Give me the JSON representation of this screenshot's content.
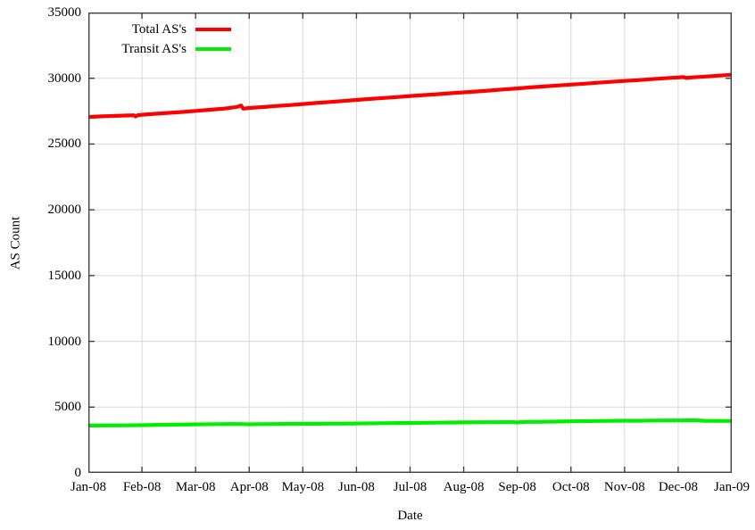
{
  "chart_data": {
    "type": "line",
    "title": "",
    "xlabel": "Date",
    "ylabel": "AS Count",
    "grid": true,
    "legend_position": "top-left-inside",
    "ylim": [
      0,
      35000
    ],
    "xlim_months": [
      0,
      12
    ],
    "x_tick_labels": [
      "Jan-08",
      "Feb-08",
      "Mar-08",
      "Apr-08",
      "May-08",
      "Jun-08",
      "Jul-08",
      "Aug-08",
      "Sep-08",
      "Oct-08",
      "Nov-08",
      "Dec-08",
      "Jan-09"
    ],
    "y_tick_labels": [
      "0",
      "5000",
      "10000",
      "15000",
      "20000",
      "25000",
      "30000",
      "35000"
    ],
    "y_tick_values": [
      0,
      5000,
      10000,
      15000,
      20000,
      25000,
      30000,
      35000
    ],
    "colors": {
      "border": "#404040",
      "grid": "#d9d9d9",
      "total": "#ff0000",
      "transit": "#00ee00"
    },
    "series": [
      {
        "name": "Total AS's",
        "color": "#ff0000",
        "x": [
          0,
          0.25,
          0.5,
          0.75,
          0.85,
          0.88,
          0.92,
          1.0,
          1.25,
          1.5,
          1.75,
          2.0,
          2.25,
          2.5,
          2.75,
          2.85,
          2.89,
          3.0,
          3.25,
          3.5,
          3.75,
          4.0,
          4.25,
          4.5,
          4.75,
          5.0,
          5.25,
          5.5,
          5.75,
          6.0,
          6.25,
          6.5,
          6.75,
          7.0,
          7.25,
          7.5,
          7.75,
          8.0,
          8.25,
          8.5,
          8.75,
          9.0,
          9.25,
          9.5,
          9.75,
          10.0,
          10.25,
          10.5,
          10.75,
          11.0,
          11.1,
          11.15,
          11.25,
          11.5,
          11.75,
          12.0
        ],
        "values": [
          27060,
          27105,
          27140,
          27170,
          27185,
          27100,
          27190,
          27230,
          27300,
          27370,
          27440,
          27520,
          27600,
          27680,
          27800,
          27930,
          27690,
          27740,
          27810,
          27890,
          27960,
          28040,
          28120,
          28200,
          28270,
          28350,
          28430,
          28500,
          28570,
          28650,
          28720,
          28790,
          28860,
          28930,
          29000,
          29070,
          29150,
          29230,
          29310,
          29380,
          29450,
          29520,
          29590,
          29660,
          29730,
          29800,
          29860,
          29930,
          30000,
          30060,
          30090,
          30020,
          30060,
          30130,
          30200,
          30270
        ]
      },
      {
        "name": "Transit AS's",
        "color": "#00ee00",
        "x": [
          0,
          0.5,
          1.0,
          1.5,
          2.0,
          2.5,
          2.75,
          3.0,
          3.5,
          4.0,
          4.25,
          4.5,
          5.0,
          5.5,
          6.0,
          6.5,
          7.0,
          7.5,
          7.9,
          8.0,
          8.1,
          8.5,
          9.0,
          9.5,
          10.0,
          10.25,
          10.5,
          11.0,
          11.3,
          11.5,
          12.0
        ],
        "values": [
          3600,
          3610,
          3630,
          3660,
          3690,
          3710,
          3720,
          3700,
          3720,
          3740,
          3735,
          3745,
          3760,
          3780,
          3800,
          3820,
          3840,
          3850,
          3860,
          3830,
          3870,
          3890,
          3920,
          3950,
          3970,
          3960,
          3980,
          3990,
          4000,
          3960,
          3950
        ]
      }
    ]
  }
}
